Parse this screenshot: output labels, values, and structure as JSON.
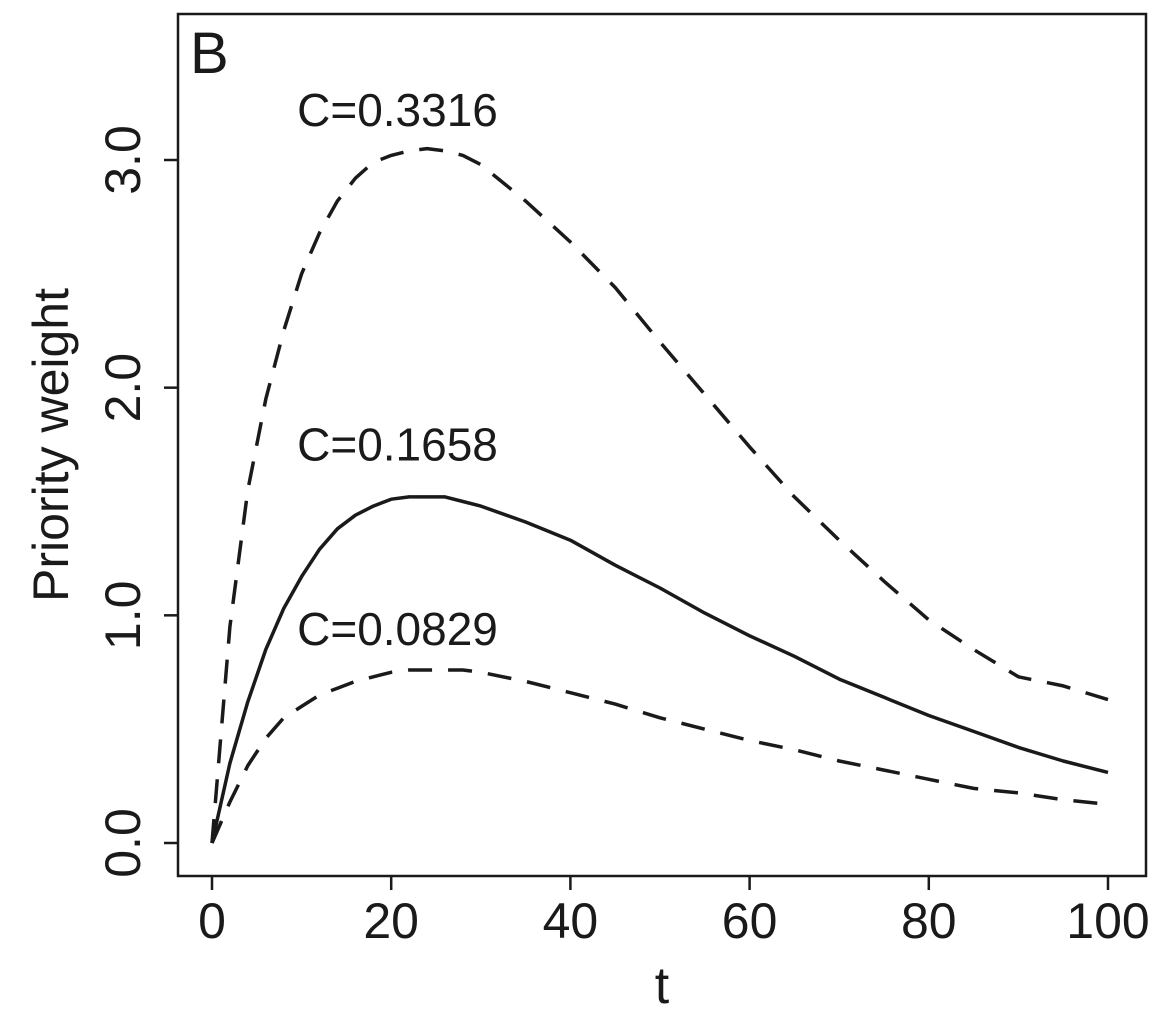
{
  "chart_data": {
    "type": "line",
    "panel_label": "B",
    "xlabel": "t",
    "ylabel": "Priority weight",
    "xlim": [
      0,
      100
    ],
    "ylim": [
      0,
      3.6
    ],
    "x_ticks": [
      0,
      20,
      40,
      60,
      80,
      100
    ],
    "x_tick_labels": [
      "0",
      "20",
      "40",
      "60",
      "80",
      "100"
    ],
    "y_ticks": [
      0,
      1,
      2,
      3
    ],
    "y_tick_labels": [
      "0.0",
      "1.0",
      "2.0",
      "3.0"
    ],
    "grid": false,
    "legend": "none",
    "colors": {
      "line": "#1a1a1a",
      "frame": "#1a1a1a",
      "background": "#ffffff"
    },
    "series": [
      {
        "style": "dashed",
        "x": [
          0,
          2,
          4,
          6,
          8,
          10,
          12,
          14,
          16,
          18,
          20,
          22,
          24,
          26,
          28,
          30,
          35,
          40,
          45,
          50,
          55,
          60,
          65,
          70,
          75,
          80,
          85,
          90,
          95,
          100
        ],
        "y": [
          0,
          0.95,
          1.55,
          1.95,
          2.25,
          2.5,
          2.68,
          2.82,
          2.92,
          2.99,
          3.02,
          3.04,
          3.05,
          3.04,
          3.02,
          2.98,
          2.82,
          2.64,
          2.44,
          2.2,
          1.97,
          1.74,
          1.52,
          1.33,
          1.15,
          0.98,
          0.85,
          0.73,
          0.69,
          0.63
        ]
      },
      {
        "style": "solid",
        "x": [
          0,
          2,
          4,
          6,
          8,
          10,
          12,
          14,
          16,
          18,
          20,
          22,
          24,
          26,
          28,
          30,
          35,
          40,
          45,
          50,
          55,
          60,
          65,
          70,
          75,
          80,
          85,
          90,
          95,
          100
        ],
        "y": [
          0,
          0.35,
          0.62,
          0.85,
          1.03,
          1.17,
          1.29,
          1.38,
          1.44,
          1.48,
          1.51,
          1.52,
          1.52,
          1.52,
          1.5,
          1.48,
          1.41,
          1.33,
          1.22,
          1.12,
          1.01,
          0.91,
          0.82,
          0.72,
          0.64,
          0.56,
          0.49,
          0.42,
          0.36,
          0.31
        ]
      },
      {
        "style": "dashed",
        "x": [
          0,
          2,
          4,
          6,
          8,
          10,
          12,
          14,
          16,
          18,
          20,
          22,
          24,
          26,
          28,
          30,
          35,
          40,
          45,
          50,
          55,
          60,
          65,
          70,
          75,
          80,
          85,
          90,
          95,
          100
        ],
        "y": [
          0,
          0.18,
          0.34,
          0.46,
          0.55,
          0.6,
          0.65,
          0.68,
          0.71,
          0.73,
          0.75,
          0.76,
          0.76,
          0.76,
          0.76,
          0.75,
          0.71,
          0.66,
          0.61,
          0.55,
          0.5,
          0.45,
          0.41,
          0.36,
          0.32,
          0.28,
          0.24,
          0.22,
          0.19,
          0.17
        ]
      }
    ],
    "annotations": [
      {
        "text": "C=0.3316",
        "x": 9.5,
        "y": 3.15
      },
      {
        "text": "C=0.1658",
        "x": 9.5,
        "y": 1.68
      },
      {
        "text": "C=0.0829",
        "x": 9.5,
        "y": 0.87
      }
    ]
  }
}
